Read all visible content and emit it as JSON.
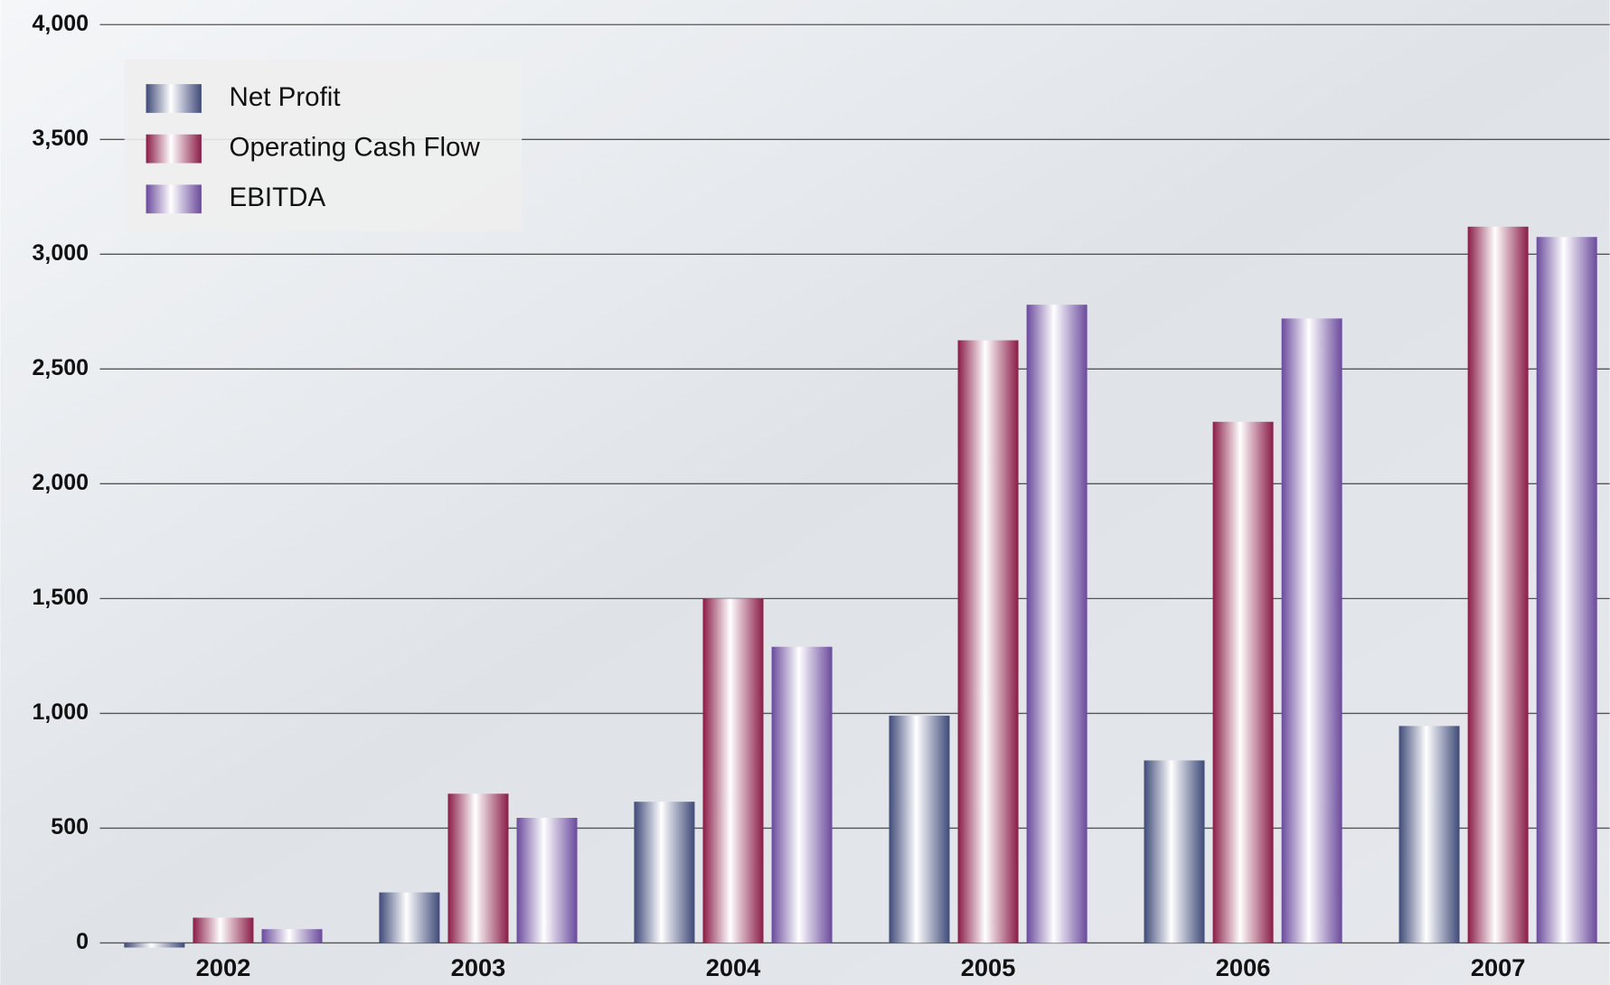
{
  "chart_data": {
    "type": "bar",
    "categories": [
      "2002",
      "2003",
      "2004",
      "2005",
      "2006",
      "2007"
    ],
    "series": [
      {
        "name": "Net Profit",
        "color": "#3f4a78",
        "values": [
          -20,
          220,
          615,
          990,
          795,
          945
        ]
      },
      {
        "name": "Operating Cash Flow",
        "color": "#8a1c46",
        "values": [
          110,
          650,
          1500,
          2625,
          2270,
          3120
        ]
      },
      {
        "name": "EBITDA",
        "color": "#6a4a9c",
        "values": [
          60,
          545,
          1290,
          2780,
          2720,
          3075
        ]
      }
    ],
    "ylim": [
      0,
      4000
    ],
    "yticks": [
      0,
      500,
      {
        "value": 1000,
        "label": "1,000"
      },
      {
        "value": 1500,
        "label": "1,500"
      },
      {
        "value": 2000,
        "label": "2,000"
      },
      {
        "value": 2500,
        "label": "2,500"
      },
      {
        "value": 3000,
        "label": "3,000"
      },
      {
        "value": 3500,
        "label": "3,500"
      },
      {
        "value": 4000,
        "label": "4,000"
      }
    ],
    "grid": true,
    "legend": "upper left"
  }
}
